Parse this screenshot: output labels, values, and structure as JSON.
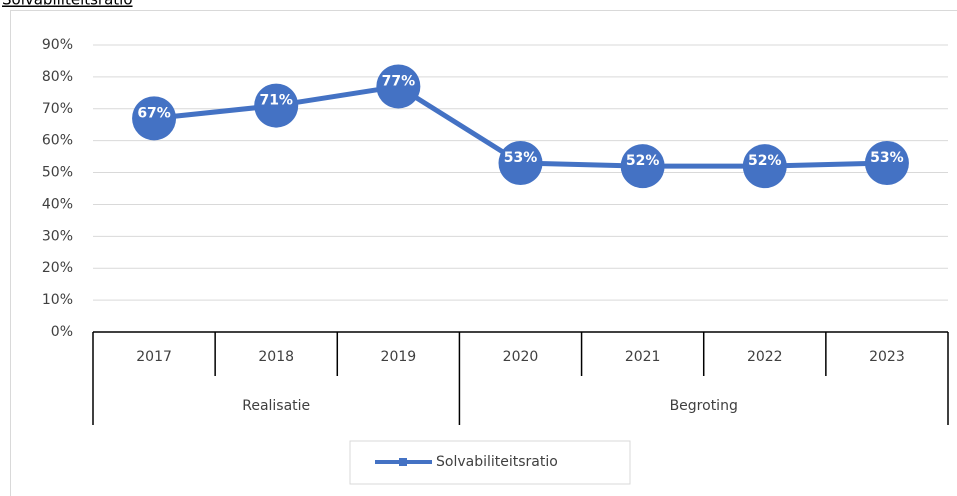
{
  "chart_data": {
    "type": "line",
    "title": "Solvabiliteitsratio",
    "categories": [
      "2017",
      "2018",
      "2019",
      "2020",
      "2021",
      "2022",
      "2023"
    ],
    "category_groups": [
      "Realisatie",
      "Realisatie",
      "Realisatie",
      "Begroting",
      "Begroting",
      "Begroting",
      "Begroting"
    ],
    "series": [
      {
        "name": "Solvabiliteitsratio",
        "color": "#4472c4",
        "values": [
          67,
          71,
          77,
          53,
          52,
          52,
          53
        ],
        "value_labels": [
          "67%",
          "71%",
          "77%",
          "53%",
          "52%",
          "52%",
          "53%"
        ]
      }
    ],
    "ylim": [
      0,
      90
    ],
    "yticks": [
      {
        "value": 0,
        "label": "0%"
      },
      {
        "value": 10,
        "label": "10%"
      },
      {
        "value": 20,
        "label": "20%"
      },
      {
        "value": 30,
        "label": "30%"
      },
      {
        "value": 40,
        "label": "40%"
      },
      {
        "value": 50,
        "label": "50%"
      },
      {
        "value": 60,
        "label": "60%"
      },
      {
        "value": 70,
        "label": "70%"
      },
      {
        "value": 80,
        "label": "80%"
      },
      {
        "value": 90,
        "label": "90%"
      }
    ],
    "grid": true,
    "legend": "bottom"
  }
}
